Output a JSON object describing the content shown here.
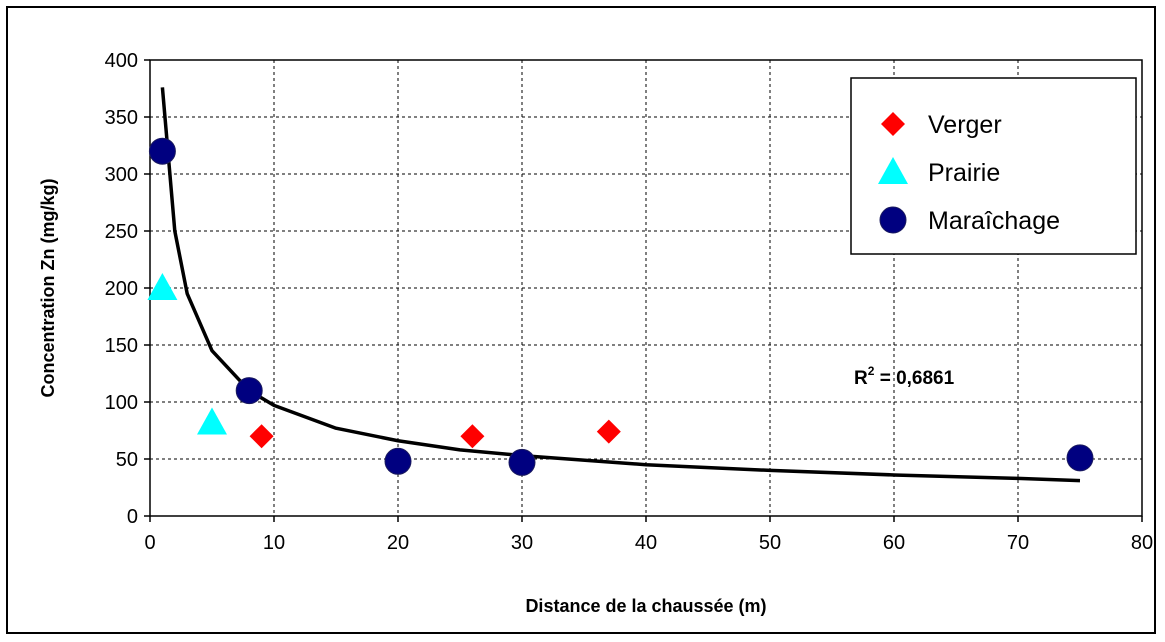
{
  "chart_data": {
    "type": "scatter",
    "xlabel": "Distance de la chaussée (m)",
    "ylabel": "Concentration Zn (mg/kg)",
    "xlim": [
      0,
      80
    ],
    "ylim": [
      0,
      400
    ],
    "x_ticks": [
      0,
      10,
      20,
      30,
      40,
      50,
      60,
      70,
      80
    ],
    "y_ticks": [
      0,
      50,
      100,
      150,
      200,
      250,
      300,
      350,
      400
    ],
    "grid": "dashed",
    "legend_position": "top-right",
    "series": [
      {
        "name": "Verger",
        "marker": "diamond",
        "color": "#ff0000",
        "points": [
          [
            9,
            70
          ],
          [
            26,
            70
          ],
          [
            37,
            74
          ]
        ]
      },
      {
        "name": "Prairie",
        "marker": "triangle",
        "color": "#00ffff",
        "points": [
          [
            1,
            200
          ],
          [
            5,
            82
          ]
        ]
      },
      {
        "name": "Maraîchage",
        "marker": "circle",
        "color": "#000080",
        "points": [
          [
            1,
            320
          ],
          [
            8,
            110
          ],
          [
            20,
            48
          ],
          [
            30,
            47
          ],
          [
            75,
            51
          ]
        ]
      }
    ],
    "trendline": {
      "type": "power",
      "color": "#000000",
      "points": [
        [
          1,
          376
        ],
        [
          2,
          250
        ],
        [
          3,
          195
        ],
        [
          5,
          145
        ],
        [
          8,
          110
        ],
        [
          10,
          97
        ],
        [
          15,
          77
        ],
        [
          20,
          66
        ],
        [
          25,
          58
        ],
        [
          30,
          53
        ],
        [
          40,
          45
        ],
        [
          50,
          40
        ],
        [
          60,
          36
        ],
        [
          70,
          33
        ],
        [
          75,
          31
        ]
      ]
    },
    "annotation": {
      "prefix": "R",
      "superscript": "2",
      "value": " = 0,6861"
    }
  }
}
